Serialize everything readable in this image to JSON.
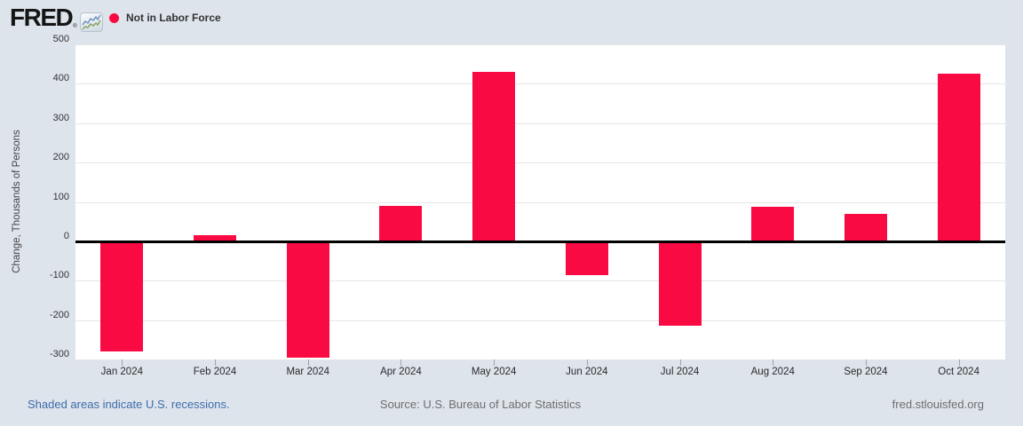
{
  "header": {
    "logo_text": "FRED",
    "logo_registered": "®",
    "legend": {
      "label": "Not in Labor Force"
    }
  },
  "chart_data": {
    "type": "bar",
    "series_name": "Not in Labor Force",
    "categories": [
      "Jan 2024",
      "Feb 2024",
      "Mar 2024",
      "Apr 2024",
      "May 2024",
      "Jun 2024",
      "Jul 2024",
      "Aug 2024",
      "Sep 2024",
      "Oct 2024"
    ],
    "values": [
      -280,
      15,
      -295,
      90,
      430,
      -85,
      -215,
      88,
      70,
      425
    ],
    "xlabel": "",
    "ylabel": "Change, Thousands of Persons",
    "ylim": [
      -300,
      500
    ],
    "yticks": [
      500,
      400,
      300,
      200,
      100,
      0,
      -100,
      -200,
      -300
    ],
    "grid": true,
    "legend_position": "top-left",
    "bar_color": "#fa0a42",
    "zero_line_color": "#000000"
  },
  "footer": {
    "recessions_note": "Shaded areas indicate U.S. recessions.",
    "source": "Source: U.S. Bureau of Labor Statistics",
    "site": "fred.stlouisfed.org"
  },
  "colors": {
    "background": "#dee4ec",
    "plot_background": "#ffffff",
    "gridline": "#e6e6e6",
    "bar": "#fa0a42",
    "link": "#3d6cab",
    "muted_text": "#6e6e6e",
    "axis_text": "#333333"
  }
}
